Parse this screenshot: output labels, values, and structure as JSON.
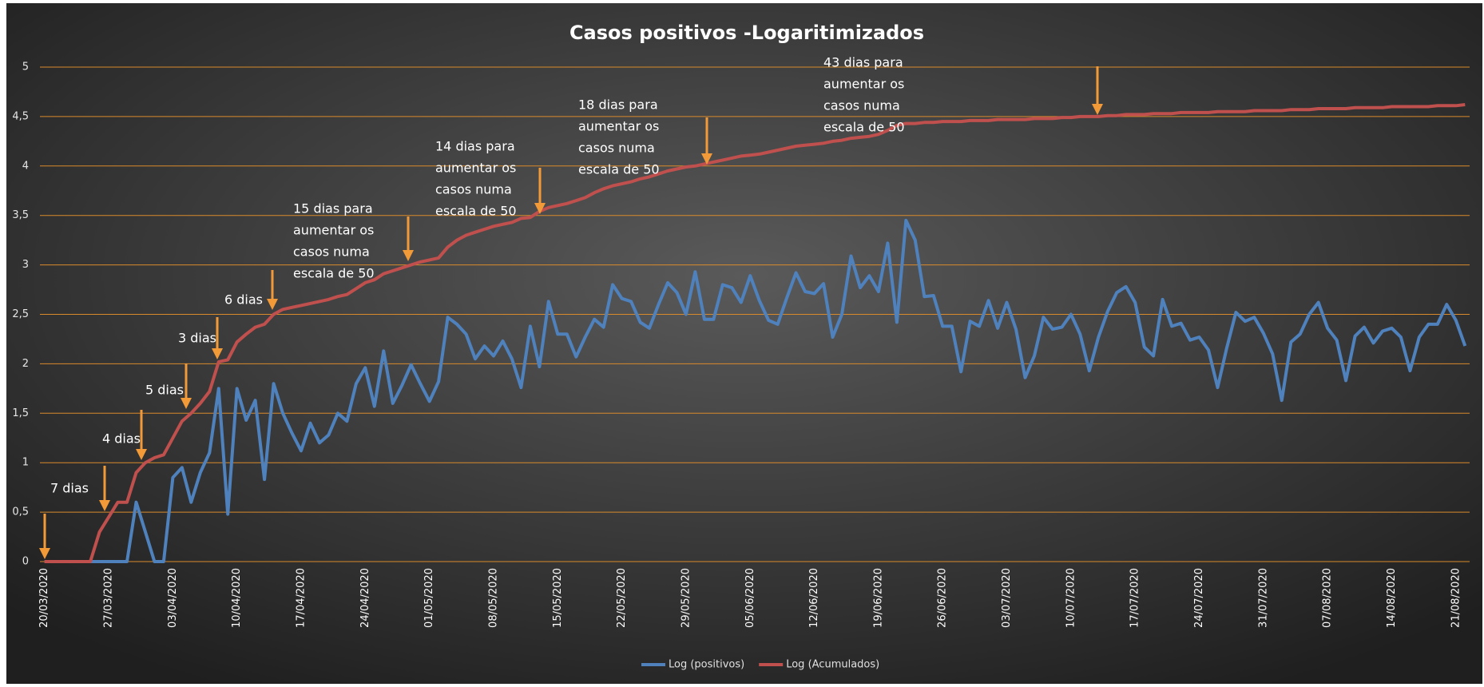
{
  "chart_data": {
    "type": "line",
    "title": "Casos positivos -Logaritimizados",
    "categories": [
      "20/03/2020",
      null,
      null,
      null,
      null,
      null,
      null,
      "27/03/2020",
      null,
      null,
      null,
      null,
      null,
      null,
      "03/04/2020",
      null,
      null,
      null,
      null,
      null,
      null,
      "10/04/2020",
      null,
      null,
      null,
      null,
      null,
      null,
      "17/04/2020",
      null,
      null,
      null,
      null,
      null,
      null,
      "24/04/2020",
      null,
      null,
      null,
      null,
      null,
      null,
      "01/05/2020",
      null,
      null,
      null,
      null,
      null,
      null,
      "08/05/2020",
      null,
      null,
      null,
      null,
      null,
      null,
      "15/05/2020",
      null,
      null,
      null,
      null,
      null,
      null,
      "22/05/2020",
      null,
      null,
      null,
      null,
      null,
      null,
      "29/05/2020",
      null,
      null,
      null,
      null,
      null,
      null,
      "05/06/2020",
      null,
      null,
      null,
      null,
      null,
      null,
      "12/06/2020",
      null,
      null,
      null,
      null,
      null,
      null,
      "19/06/2020",
      null,
      null,
      null,
      null,
      null,
      null,
      "26/06/2020",
      null,
      null,
      null,
      null,
      null,
      null,
      "03/07/2020",
      null,
      null,
      null,
      null,
      null,
      null,
      "10/07/2020",
      null,
      null,
      null,
      null,
      null,
      null,
      "17/07/2020",
      null,
      null,
      null,
      null,
      null,
      null,
      "24/07/2020",
      null,
      null,
      null,
      null,
      null,
      null,
      "31/07/2020",
      null,
      null,
      null,
      null,
      null,
      null,
      "07/08/2020",
      null,
      null,
      null,
      null,
      null,
      null,
      "14/08/2020",
      null,
      null,
      null,
      null,
      null,
      null,
      "21/08/2020",
      null
    ],
    "series": [
      {
        "name": "Log (positivos)",
        "color": "#4f81bd",
        "values": [
          0,
          0,
          0,
          0,
          0,
          0,
          0,
          0,
          0,
          0,
          0.6,
          0.3,
          0,
          0,
          0.85,
          0.95,
          0.6,
          0.9,
          1.1,
          1.75,
          0.48,
          1.75,
          1.43,
          1.63,
          0.83,
          1.8,
          1.5,
          1.3,
          1.12,
          1.4,
          1.2,
          1.28,
          1.5,
          1.42,
          1.8,
          1.96,
          1.57,
          2.13,
          1.6,
          1.78,
          1.99,
          1.8,
          1.62,
          1.82,
          2.47,
          2.4,
          2.3,
          2.05,
          2.18,
          2.08,
          2.23,
          2.05,
          1.76,
          2.38,
          1.97,
          2.63,
          2.3,
          2.3,
          2.07,
          2.27,
          2.45,
          2.37,
          2.8,
          2.66,
          2.63,
          2.42,
          2.36,
          2.6,
          2.82,
          2.72,
          2.5,
          2.93,
          2.45,
          2.45,
          2.8,
          2.77,
          2.62,
          2.89,
          2.64,
          2.44,
          2.4,
          2.67,
          2.92,
          2.73,
          2.71,
          2.81,
          2.27,
          2.5,
          3.09,
          2.77,
          2.89,
          2.73,
          3.22,
          2.42,
          3.45,
          3.25,
          2.68,
          2.69,
          2.38,
          2.38,
          1.92,
          2.43,
          2.38,
          2.64,
          2.36,
          2.62,
          2.35,
          1.86,
          2.08,
          2.47,
          2.35,
          2.37,
          2.5,
          2.3,
          1.93,
          2.27,
          2.53,
          2.72,
          2.78,
          2.62,
          2.17,
          2.08,
          2.65,
          2.38,
          2.41,
          2.24,
          2.27,
          2.14,
          1.76,
          2.16,
          2.52,
          2.43,
          2.47,
          2.31,
          2.1,
          1.63,
          2.22,
          2.3,
          2.5,
          2.62,
          2.36,
          2.24,
          1.83,
          2.28,
          2.37,
          2.21,
          2.33,
          2.36,
          2.27,
          1.93,
          2.27,
          2.4,
          2.4,
          2.6,
          2.44,
          2.18
        ]
      },
      {
        "name": "Log (Acumulados)",
        "color": "#c0504d",
        "values": [
          0,
          0,
          0,
          0,
          0,
          0,
          0.3,
          0.45,
          0.6,
          0.6,
          0.9,
          1.0,
          1.05,
          1.08,
          1.25,
          1.42,
          1.5,
          1.6,
          1.72,
          2.02,
          2.04,
          2.22,
          2.3,
          2.37,
          2.4,
          2.5,
          2.55,
          2.57,
          2.59,
          2.61,
          2.63,
          2.65,
          2.68,
          2.7,
          2.76,
          2.82,
          2.85,
          2.91,
          2.94,
          2.97,
          3.0,
          3.03,
          3.05,
          3.07,
          3.18,
          3.25,
          3.3,
          3.33,
          3.36,
          3.39,
          3.41,
          3.43,
          3.47,
          3.48,
          3.54,
          3.58,
          3.6,
          3.62,
          3.65,
          3.68,
          3.73,
          3.77,
          3.8,
          3.82,
          3.84,
          3.87,
          3.89,
          3.92,
          3.95,
          3.97,
          3.99,
          4.0,
          4.02,
          4.04,
          4.06,
          4.08,
          4.1,
          4.11,
          4.12,
          4.14,
          4.16,
          4.18,
          4.2,
          4.21,
          4.22,
          4.23,
          4.25,
          4.26,
          4.28,
          4.29,
          4.3,
          4.32,
          4.36,
          4.41,
          4.43,
          4.43,
          4.44,
          4.44,
          4.45,
          4.45,
          4.45,
          4.46,
          4.46,
          4.46,
          4.47,
          4.47,
          4.47,
          4.47,
          4.48,
          4.48,
          4.48,
          4.49,
          4.49,
          4.5,
          4.5,
          4.5,
          4.51,
          4.51,
          4.52,
          4.52,
          4.52,
          4.53,
          4.53,
          4.53,
          4.54,
          4.54,
          4.54,
          4.54,
          4.55,
          4.55,
          4.55,
          4.55,
          4.56,
          4.56,
          4.56,
          4.56,
          4.57,
          4.57,
          4.57,
          4.58,
          4.58,
          4.58,
          4.58,
          4.59,
          4.59,
          4.59,
          4.59,
          4.6,
          4.6,
          4.6,
          4.6,
          4.6,
          4.61,
          4.61,
          4.61,
          4.62
        ]
      }
    ],
    "ylim": [
      0,
      5
    ],
    "yticks": [
      0,
      {
        "value": 0.5,
        "label": "0,5"
      },
      1,
      {
        "value": 1.5,
        "label": "1,5"
      },
      2,
      {
        "value": 2.5,
        "label": "2,5"
      },
      3,
      {
        "value": 3.5,
        "label": "3,5"
      },
      4,
      {
        "value": 4.5,
        "label": "4,5"
      },
      5
    ],
    "grid": true,
    "legend": "bottom",
    "annotations": [
      [
        "7 dias"
      ],
      [
        "4 dias"
      ],
      [
        "5 dias"
      ],
      [
        "3 dias"
      ],
      [
        "6 dias"
      ],
      [
        "15 dias para",
        "aumentar os",
        "casos numa",
        "escala de 50"
      ],
      [
        "14 dias para",
        "aumentar os",
        "casos numa",
        "escala de 50"
      ],
      [
        "18 dias para",
        "aumentar os",
        "casos numa",
        "escala de 50"
      ],
      [
        "43 dias para",
        "aumentar os",
        "casos numa",
        "escala de 50"
      ]
    ]
  }
}
